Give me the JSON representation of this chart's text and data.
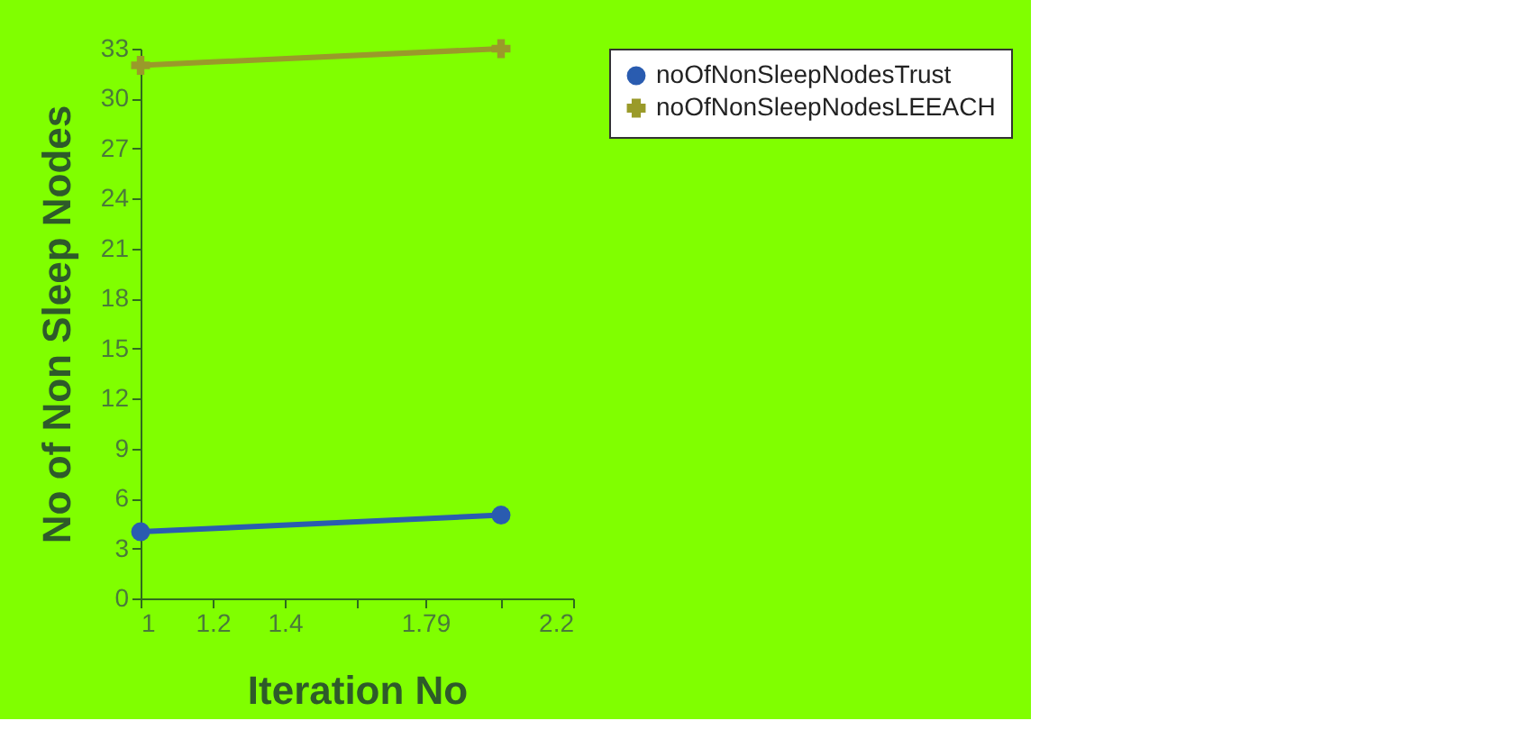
{
  "chart_data": {
    "type": "line",
    "xlabel": "Iteration No",
    "ylabel": "No of Non Sleep Nodes",
    "x": [
      1,
      2
    ],
    "series": [
      {
        "name": "noOfNonSleepNodesTrust",
        "color": "#2a5cb0",
        "marker": "circle",
        "values": [
          4,
          5
        ]
      },
      {
        "name": "noOfNonSleepNodesLEEACH",
        "color": "#9a9a2a",
        "marker": "cross",
        "values": [
          32,
          33
        ]
      }
    ],
    "xlim": [
      1,
      2.2
    ],
    "xticks": [
      1,
      1.2,
      1.4,
      {
        "value": 1.6,
        "label": null
      },
      1.79,
      {
        "value": 2,
        "label": null
      },
      2.2
    ],
    "ylim": [
      0,
      33
    ],
    "yticks": [
      0,
      3,
      6,
      9,
      12,
      15,
      18,
      21,
      24,
      27,
      30,
      33
    ],
    "grid": false,
    "legend": "right",
    "line_style": "solid"
  }
}
